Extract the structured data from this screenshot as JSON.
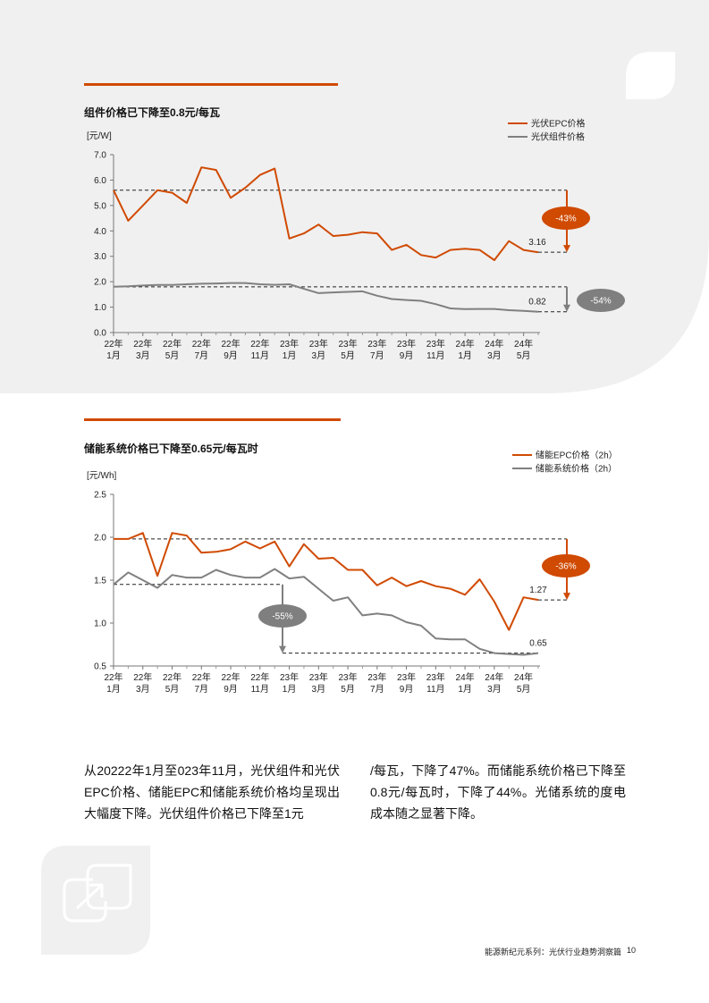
{
  "colors": {
    "accent": "#d04a02",
    "gray_series": "#808080",
    "panel_bg": "#f0f0f0",
    "badge_gray": "#7f7f7f"
  },
  "chart_data": [
    {
      "type": "line",
      "title": "组件价格已下降至0.8元/每瓦",
      "ylabel": "[元/W]",
      "ylim": [
        0,
        7
      ],
      "yticks": [
        "0.0",
        "1.0",
        "2.0",
        "3.0",
        "4.0",
        "5.0",
        "6.0",
        "7.0"
      ],
      "x_tick_labels": [
        [
          "22年",
          "1月"
        ],
        [
          "22年",
          "3月"
        ],
        [
          "22年",
          "5月"
        ],
        [
          "22年",
          "7月"
        ],
        [
          "22年",
          "9月"
        ],
        [
          "22年",
          "11月"
        ],
        [
          "23年",
          "1月"
        ],
        [
          "23年",
          "3月"
        ],
        [
          "23年",
          "5月"
        ],
        [
          "23年",
          "7月"
        ],
        [
          "23年",
          "9月"
        ],
        [
          "23年",
          "11月"
        ],
        [
          "24年",
          "1月"
        ],
        [
          "24年",
          "3月"
        ],
        [
          "24年",
          "5月"
        ]
      ],
      "legend_position": "top-right",
      "series": [
        {
          "name": "光伏EPC价格",
          "color": "#d04a02",
          "values": [
            5.6,
            4.4,
            5.0,
            5.6,
            5.5,
            5.1,
            6.5,
            6.4,
            5.3,
            5.7,
            6.2,
            6.45,
            3.7,
            3.9,
            4.25,
            3.8,
            3.85,
            3.95,
            3.9,
            3.25,
            3.45,
            3.05,
            2.95,
            3.25,
            3.3,
            3.25,
            2.85,
            3.6,
            3.25,
            3.16
          ]
        },
        {
          "name": "光伏组件价格",
          "color": "#808080",
          "values": [
            1.8,
            1.82,
            1.85,
            1.87,
            1.87,
            1.9,
            1.92,
            1.93,
            1.95,
            1.95,
            1.9,
            1.88,
            1.9,
            1.72,
            1.55,
            1.58,
            1.6,
            1.62,
            1.45,
            1.32,
            1.28,
            1.25,
            1.12,
            0.95,
            0.92,
            0.93,
            0.93,
            0.88,
            0.85,
            0.82
          ]
        }
      ],
      "reference_levels": [
        5.6,
        3.16,
        1.8,
        0.82
      ],
      "annotations": [
        {
          "text": "-43%",
          "from": 5.6,
          "to": 3.16,
          "badge": "orange"
        },
        {
          "text": "-54%",
          "from": 1.8,
          "to": 0.82,
          "badge": "gray"
        }
      ],
      "end_labels": [
        {
          "text": "3.16",
          "value": 3.16
        },
        {
          "text": "0.82",
          "value": 0.82
        }
      ]
    },
    {
      "type": "line",
      "title": "储能系统价格已下降至0.65元/每瓦时",
      "ylabel": "[元/Wh]",
      "ylim": [
        0.5,
        2.5
      ],
      "yticks": [
        "0.5",
        "1.0",
        "1.5",
        "2.0",
        "2.5"
      ],
      "x_tick_labels": [
        [
          "22年",
          "1月"
        ],
        [
          "22年",
          "3月"
        ],
        [
          "22年",
          "5月"
        ],
        [
          "22年",
          "7月"
        ],
        [
          "22年",
          "9月"
        ],
        [
          "22年",
          "11月"
        ],
        [
          "23年",
          "1月"
        ],
        [
          "23年",
          "3月"
        ],
        [
          "23年",
          "5月"
        ],
        [
          "23年",
          "7月"
        ],
        [
          "23年",
          "9月"
        ],
        [
          "23年",
          "11月"
        ],
        [
          "24年",
          "1月"
        ],
        [
          "24年",
          "3月"
        ],
        [
          "24年",
          "5月"
        ]
      ],
      "legend_position": "top-right",
      "series": [
        {
          "name": "储能EPC价格（2h）",
          "color": "#d04a02",
          "values": [
            1.98,
            1.98,
            2.05,
            1.55,
            2.05,
            2.02,
            1.82,
            1.83,
            1.86,
            1.95,
            1.87,
            1.95,
            1.66,
            1.92,
            1.75,
            1.76,
            1.62,
            1.62,
            1.44,
            1.53,
            1.43,
            1.49,
            1.43,
            1.4,
            1.33,
            1.51,
            1.25,
            0.92,
            1.3,
            1.27
          ]
        },
        {
          "name": "储能系统价格（2h）",
          "color": "#808080",
          "values": [
            1.45,
            1.59,
            1.5,
            1.41,
            1.56,
            1.53,
            1.53,
            1.62,
            1.56,
            1.53,
            1.53,
            1.63,
            1.52,
            1.54,
            1.4,
            1.26,
            1.3,
            1.09,
            1.11,
            1.09,
            1.01,
            0.97,
            0.82,
            0.81,
            0.81,
            0.7,
            0.65,
            0.64,
            0.63,
            0.65
          ]
        }
      ],
      "reference_levels": [
        1.98,
        1.27,
        1.45,
        0.65
      ],
      "annotations": [
        {
          "text": "-36%",
          "from": 1.98,
          "to": 1.27,
          "badge": "orange"
        },
        {
          "text": "-55%",
          "from": 1.45,
          "to": 0.65,
          "badge": "gray"
        }
      ],
      "end_labels": [
        {
          "text": "1.27",
          "value": 1.27
        },
        {
          "text": "0.65",
          "value": 0.65
        }
      ]
    }
  ],
  "body": {
    "col1": "从20222年1月至023年11月，光伏组件和光伏EPC价格、储能EPC和储能系统价格均呈现出大幅度下降。光伏组件价格已下降至1元",
    "col2": "/每瓦，下降了47%。而储能系统价格已下降至0.8元/每瓦时，下降了44%。光储系统的度电成本随之显著下降。"
  },
  "footer": {
    "text": "能源新纪元系列：光伏行业趋势洞察篇",
    "page": "10"
  },
  "decor": {
    "top_right_icon": "leaf-shape-icon",
    "bottom_left_icon": "window-arrow-icon"
  }
}
